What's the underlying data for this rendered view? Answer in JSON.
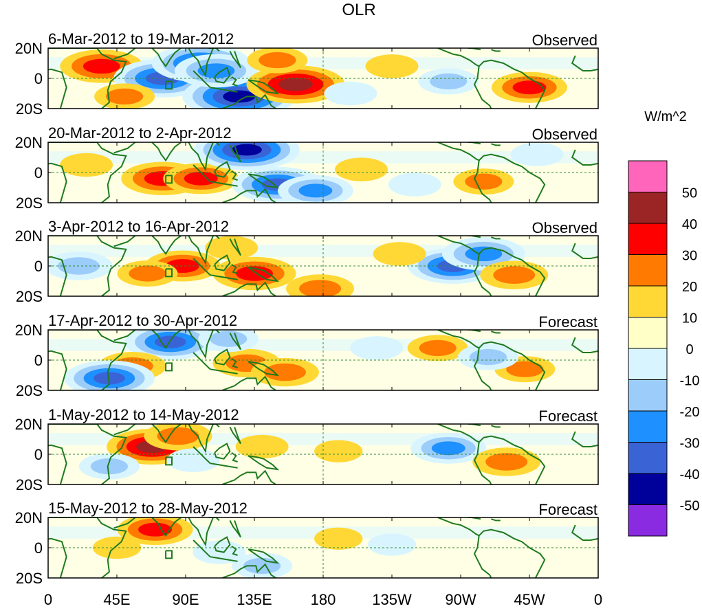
{
  "chart_data": {
    "type": "heatmap",
    "title": "OLR",
    "variable": "OLR",
    "units": "W/m^2",
    "x_ticks": [
      "0",
      "45E",
      "90E",
      "135E",
      "180",
      "135W",
      "90W",
      "45W",
      "0"
    ],
    "y_ticks": [
      "20N",
      "0",
      "20S"
    ],
    "colorbar": {
      "label": "W/m^2",
      "levels": [
        "50",
        "40",
        "30",
        "20",
        "10",
        "0",
        "-10",
        "-20",
        "-30",
        "-40",
        "-50"
      ],
      "colors": [
        "#ff66bb",
        "#9b2424",
        "#ff0000",
        "#ff7a00",
        "#ffd835",
        "#ffffc8",
        "#d8f5ff",
        "#9ccdfa",
        "#1e90ff",
        "#3a64d6",
        "#00009a",
        "#8a2be2"
      ]
    },
    "panels": [
      {
        "period": "6-Mar-2012 to 19-Mar-2012",
        "status": "Observed",
        "anomalies": [
          {
            "lon": 35,
            "lat": 8,
            "value": 35
          },
          {
            "lon": 75,
            "lat": 0,
            "value": -45
          },
          {
            "lon": 100,
            "lat": 10,
            "value": -45
          },
          {
            "lon": 125,
            "lat": -12,
            "value": -55
          },
          {
            "lon": 110,
            "lat": 5,
            "value": -35
          },
          {
            "lon": 162,
            "lat": -4,
            "value": 45
          },
          {
            "lon": 150,
            "lat": 12,
            "value": 20
          },
          {
            "lon": 225,
            "lat": 8,
            "value": 15
          },
          {
            "lon": 262,
            "lat": -2,
            "value": -20
          },
          {
            "lon": 315,
            "lat": -6,
            "value": 30
          },
          {
            "lon": 50,
            "lat": -12,
            "value": 20
          },
          {
            "lon": 198,
            "lat": -10,
            "value": -15
          }
        ]
      },
      {
        "period": "20-Mar-2012 to 2-Apr-2012",
        "status": "Observed",
        "anomalies": [
          {
            "lon": 75,
            "lat": -4,
            "value": 35
          },
          {
            "lon": 100,
            "lat": -4,
            "value": 30
          },
          {
            "lon": 130,
            "lat": 15,
            "value": -50
          },
          {
            "lon": 150,
            "lat": -8,
            "value": -40
          },
          {
            "lon": 175,
            "lat": -12,
            "value": -30
          },
          {
            "lon": 205,
            "lat": 2,
            "value": 15
          },
          {
            "lon": 285,
            "lat": -6,
            "value": 20
          },
          {
            "lon": 25,
            "lat": 5,
            "value": 15
          },
          {
            "lon": 240,
            "lat": -8,
            "value": -15
          },
          {
            "lon": 320,
            "lat": 12,
            "value": -15
          }
        ]
      },
      {
        "period": "3-Apr-2012 to 16-Apr-2012",
        "status": "Observed",
        "anomalies": [
          {
            "lon": 88,
            "lat": 0,
            "value": 30
          },
          {
            "lon": 135,
            "lat": -5,
            "value": 35
          },
          {
            "lon": 65,
            "lat": -5,
            "value": 20
          },
          {
            "lon": 265,
            "lat": 0,
            "value": -40
          },
          {
            "lon": 285,
            "lat": 8,
            "value": -35
          },
          {
            "lon": 305,
            "lat": -6,
            "value": 25
          },
          {
            "lon": 20,
            "lat": 0,
            "value": -25
          },
          {
            "lon": 178,
            "lat": -15,
            "value": 25
          },
          {
            "lon": 230,
            "lat": 8,
            "value": 15
          },
          {
            "lon": 120,
            "lat": 12,
            "value": 15
          }
        ]
      },
      {
        "period": "17-Apr-2012 to 30-Apr-2012",
        "status": "Forecast",
        "anomalies": [
          {
            "lon": 80,
            "lat": 12,
            "value": -40
          },
          {
            "lon": 55,
            "lat": -4,
            "value": 25
          },
          {
            "lon": 130,
            "lat": -2,
            "value": 25
          },
          {
            "lon": 155,
            "lat": -8,
            "value": 25
          },
          {
            "lon": 40,
            "lat": -12,
            "value": -40
          },
          {
            "lon": 118,
            "lat": 14,
            "value": -20
          },
          {
            "lon": 255,
            "lat": 8,
            "value": 20
          },
          {
            "lon": 312,
            "lat": -6,
            "value": 20
          },
          {
            "lon": 288,
            "lat": 2,
            "value": -20
          },
          {
            "lon": 215,
            "lat": 8,
            "value": -15
          }
        ]
      },
      {
        "period": "1-May-2012 to 14-May-2012",
        "status": "Forecast",
        "anomalies": [
          {
            "lon": 68,
            "lat": 5,
            "value": 40
          },
          {
            "lon": 85,
            "lat": 12,
            "value": 25
          },
          {
            "lon": 40,
            "lat": -8,
            "value": -20
          },
          {
            "lon": 95,
            "lat": -4,
            "value": -15
          },
          {
            "lon": 262,
            "lat": 4,
            "value": -30
          },
          {
            "lon": 300,
            "lat": -5,
            "value": 25
          },
          {
            "lon": 140,
            "lat": 5,
            "value": 15
          },
          {
            "lon": 190,
            "lat": 2,
            "value": 12
          }
        ]
      },
      {
        "period": "15-May-2012 to 28-May-2012",
        "status": "Forecast",
        "anomalies": [
          {
            "lon": 70,
            "lat": 12,
            "value": 30
          },
          {
            "lon": 140,
            "lat": -12,
            "value": -20
          },
          {
            "lon": 112,
            "lat": -3,
            "value": -15
          },
          {
            "lon": 190,
            "lat": 6,
            "value": 12
          },
          {
            "lon": 225,
            "lat": 2,
            "value": -12
          },
          {
            "lon": 45,
            "lat": 0,
            "value": 12
          }
        ]
      }
    ]
  }
}
